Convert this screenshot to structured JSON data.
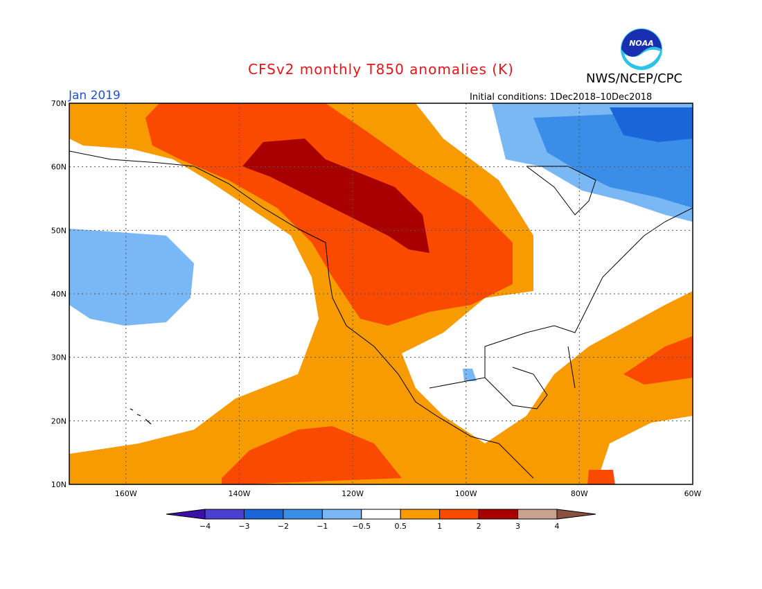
{
  "header": {
    "title": "CFSv2 monthly T850 anomalies (K)",
    "agency": "NWS/NCEP/CPC",
    "period": "Jan 2019",
    "initial_conditions": "Initial conditions: 1Dec2018–10Dec2018"
  },
  "logo": {
    "text": "NOAA",
    "icon": "noaa-logo"
  },
  "map": {
    "lat_labels": [
      "70N",
      "60N",
      "50N",
      "40N",
      "30N",
      "20N",
      "10N"
    ],
    "lon_labels": [
      "160W",
      "140W",
      "120W",
      "100W",
      "80W",
      "60W"
    ]
  },
  "colorbar": {
    "labels": [
      "−4",
      "−3",
      "−2",
      "−1",
      "−0.5",
      "0.5",
      "1",
      "2",
      "3",
      "4"
    ],
    "colors": [
      "#3a10a8",
      "#4a3fd0",
      "#1a66d8",
      "#3a8ee8",
      "#7ab8f5",
      "#ffffff",
      "#f89b00",
      "#fa4a00",
      "#a80000",
      "#c9a18c",
      "#8a5040"
    ]
  }
}
